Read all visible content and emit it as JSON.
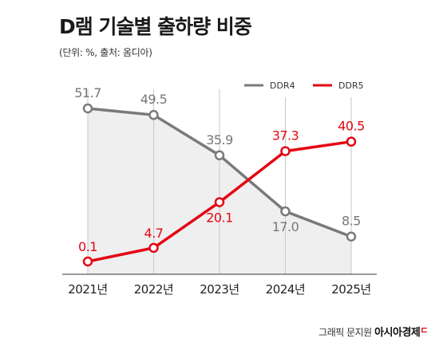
{
  "header": {
    "title": "D램 기술별 출하량 비중",
    "subtitle": "(단위: %, 출처: 옴디아)"
  },
  "credit": {
    "byline": "그래픽 문지원",
    "brand": "아시아경제",
    "mark": "ㄷ"
  },
  "colors": {
    "ddr4": "#7a7a7a",
    "ddr5": "#e30613",
    "fill": "#efefef"
  },
  "chart_data": {
    "type": "line",
    "title": "D램 기술별 출하량 비중",
    "ylabel": "",
    "xlabel": "",
    "categories": [
      "2021년",
      "2022년",
      "2023년",
      "2024년",
      "2025년"
    ],
    "ylim": [
      0,
      55
    ],
    "legend": "top-right",
    "grid": "vertical",
    "series": [
      {
        "name": "DDR4",
        "values": [
          51.7,
          49.5,
          35.9,
          17.0,
          8.5
        ],
        "labels": [
          "51.7",
          "49.5",
          "35.9",
          "17.0",
          "8.5"
        ]
      },
      {
        "name": "DDR5",
        "values": [
          0.1,
          4.7,
          20.1,
          37.3,
          40.5
        ],
        "labels": [
          "0.1",
          "4.7",
          "20.1",
          "37.3",
          "40.5"
        ]
      }
    ]
  }
}
